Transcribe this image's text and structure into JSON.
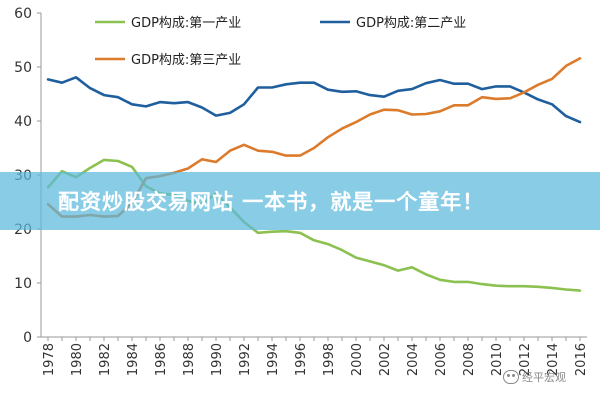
{
  "chart_data": {
    "type": "line",
    "title": "",
    "xlabel": "",
    "ylabel": "",
    "ylim": [
      0,
      60
    ],
    "y_ticks": [
      "0",
      "10",
      "20",
      "30",
      "40",
      "50",
      "60"
    ],
    "x_ticks": [
      "1978",
      "1980",
      "1982",
      "1984",
      "1986",
      "1988",
      "1990",
      "1992",
      "1994",
      "1996",
      "1998",
      "2000",
      "2002",
      "2004",
      "2006",
      "2008",
      "2010",
      "2012",
      "2014",
      "2016"
    ],
    "x": [
      1978,
      1979,
      1980,
      1981,
      1982,
      1983,
      1984,
      1985,
      1986,
      1987,
      1988,
      1989,
      1990,
      1991,
      1992,
      1993,
      1994,
      1995,
      1996,
      1997,
      1998,
      1999,
      2000,
      2001,
      2002,
      2003,
      2004,
      2005,
      2006,
      2007,
      2008,
      2009,
      2010,
      2011,
      2012,
      2013,
      2014,
      2015,
      2016
    ],
    "grid": false,
    "legend_position": "top",
    "series": [
      {
        "name": "GDP构成:第一产业",
        "color": "#8cc152",
        "values": [
          27.7,
          30.7,
          29.6,
          31.3,
          32.8,
          32.6,
          31.5,
          27.9,
          26.6,
          26.3,
          25.2,
          24.6,
          26.6,
          24.0,
          21.3,
          19.3,
          19.5,
          19.6,
          19.3,
          17.9,
          17.2,
          16.1,
          14.7,
          14.0,
          13.3,
          12.3,
          12.9,
          11.6,
          10.6,
          10.2,
          10.2,
          9.8,
          9.5,
          9.4,
          9.4,
          9.3,
          9.1,
          8.8,
          8.6
        ]
      },
      {
        "name": "GDP构成:第二产业",
        "color": "#1f5f9e",
        "values": [
          47.7,
          47.1,
          48.1,
          46.1,
          44.8,
          44.4,
          43.1,
          42.7,
          43.5,
          43.3,
          43.5,
          42.5,
          41.0,
          41.5,
          43.1,
          46.2,
          46.2,
          46.8,
          47.1,
          47.1,
          45.8,
          45.4,
          45.5,
          44.8,
          44.5,
          45.6,
          45.9,
          47.0,
          47.6,
          46.9,
          46.9,
          45.9,
          46.4,
          46.4,
          45.3,
          44.0,
          43.1,
          40.9,
          39.8
        ]
      },
      {
        "name": "GDP构成:第三产业",
        "color": "#dc7b2c",
        "values": [
          24.6,
          22.3,
          22.3,
          22.6,
          22.3,
          22.4,
          24.8,
          29.4,
          29.8,
          30.4,
          31.2,
          32.9,
          32.4,
          34.5,
          35.6,
          34.5,
          34.3,
          33.6,
          33.6,
          35.0,
          37.0,
          38.6,
          39.8,
          41.2,
          42.1,
          42.0,
          41.2,
          41.3,
          41.8,
          42.9,
          42.9,
          44.4,
          44.1,
          44.2,
          45.3,
          46.7,
          47.8,
          50.2,
          51.6
        ]
      }
    ]
  },
  "overlay": {
    "banner_text": "配资炒股交易网站 一本书，就是一个童年！",
    "watermark_text": "经平宏观"
  }
}
